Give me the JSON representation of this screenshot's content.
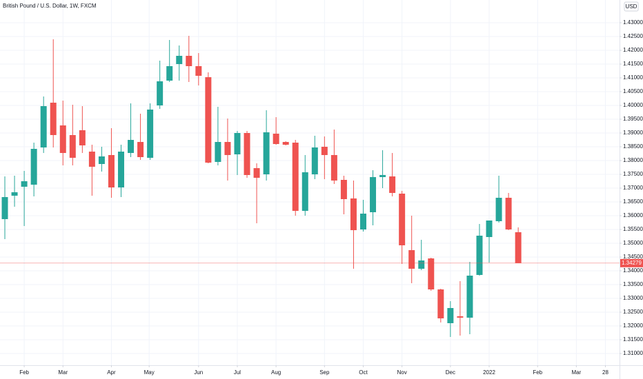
{
  "chart_data": {
    "type": "candlestick",
    "title": "British Pound / U.S. Dollar, 1W, FXCM",
    "currency": "USD",
    "up_color": "#26a69a",
    "down_color": "#ef5350",
    "grid": true,
    "xlim": [
      -0.5,
      63.46
    ],
    "ylim": [
      1.30575,
      1.43825
    ],
    "open": [
      1.35875,
      1.36725,
      1.3705,
      1.37125,
      1.38475,
      1.401,
      1.39275,
      1.38925,
      1.391,
      1.38325,
      1.37875,
      1.382,
      1.37025,
      1.38275,
      1.38675,
      1.381,
      1.4,
      1.409,
      1.415,
      1.418,
      1.41425,
      1.41025,
      1.3795,
      1.38675,
      1.38225,
      1.39,
      1.37725,
      1.375,
      1.38975,
      1.38675,
      1.3865,
      1.36175,
      1.375,
      1.385,
      1.382,
      1.373,
      1.36625,
      1.355,
      1.36125,
      1.374,
      1.37425,
      1.368,
      1.3475,
      1.34075,
      1.3445,
      1.33325,
      1.321,
      1.3235,
      1.323,
      1.3385,
      1.35225,
      1.358,
      1.3665,
      1.354
    ],
    "high": [
      1.37425,
      1.3745,
      1.37625,
      1.3865,
      1.40325,
      1.424,
      1.40175,
      1.40025,
      1.39975,
      1.38575,
      1.385,
      1.39175,
      1.38575,
      1.40075,
      1.397,
      1.40075,
      1.41625,
      1.42375,
      1.42175,
      1.42525,
      1.419,
      1.412,
      1.3995,
      1.39525,
      1.39075,
      1.39075,
      1.379,
      1.39825,
      1.39575,
      1.387,
      1.3875,
      1.382,
      1.389,
      1.38875,
      1.39125,
      1.3745,
      1.37275,
      1.36575,
      1.3765,
      1.38375,
      1.38275,
      1.369,
      1.36,
      1.35125,
      1.34475,
      1.3335,
      1.329,
      1.33625,
      1.34325,
      1.357,
      1.35825,
      1.3745,
      1.36825,
      1.35575
    ],
    "low": [
      1.3515,
      1.36325,
      1.35625,
      1.367,
      1.38275,
      1.38475,
      1.37825,
      1.37825,
      1.38275,
      1.36725,
      1.376,
      1.3665,
      1.36675,
      1.38125,
      1.38025,
      1.38025,
      1.39875,
      1.4085,
      1.409,
      1.4085,
      1.40725,
      1.379,
      1.37825,
      1.37275,
      1.37475,
      1.37375,
      1.35725,
      1.37275,
      1.38575,
      1.3855,
      1.36,
      1.36,
      1.37325,
      1.37325,
      1.3715,
      1.3605,
      1.34075,
      1.35425,
      1.3565,
      1.37,
      1.367,
      1.3425,
      1.3355,
      1.34025,
      1.33275,
      1.32125,
      1.316,
      1.3165,
      1.317,
      1.33825,
      1.343,
      1.3575,
      1.35475,
      1.34279
    ],
    "close": [
      1.36675,
      1.3685,
      1.3725,
      1.38425,
      1.39975,
      1.38925,
      1.38275,
      1.381,
      1.3855,
      1.37775,
      1.3815,
      1.37025,
      1.38325,
      1.3875,
      1.38125,
      1.3985,
      1.40875,
      1.41425,
      1.418,
      1.41425,
      1.41075,
      1.37925,
      1.38675,
      1.382,
      1.39,
      1.37475,
      1.37375,
      1.39025,
      1.386,
      1.38575,
      1.36175,
      1.37575,
      1.38475,
      1.382,
      1.37275,
      1.366,
      1.35475,
      1.36075,
      1.374,
      1.37475,
      1.36825,
      1.34925,
      1.34075,
      1.34375,
      1.33325,
      1.32275,
      1.3265,
      1.323,
      1.33825,
      1.35275,
      1.35825,
      1.3665,
      1.355,
      1.34279
    ],
    "last_price": {
      "value": 1.34279,
      "label": "1.34279"
    },
    "xticks": [
      {
        "value": 2,
        "label": "Feb"
      },
      {
        "value": 6,
        "label": "Mar"
      },
      {
        "value": 11,
        "label": "Apr"
      },
      {
        "value": 14.9,
        "label": "May"
      },
      {
        "value": 20,
        "label": "Jun"
      },
      {
        "value": 24,
        "label": "Jul"
      },
      {
        "value": 28,
        "label": "Aug"
      },
      {
        "value": 33,
        "label": "Sep"
      },
      {
        "value": 37,
        "label": "Oct"
      },
      {
        "value": 41,
        "label": "Nov"
      },
      {
        "value": 46,
        "label": "Dec"
      },
      {
        "value": 50,
        "label": "2022"
      },
      {
        "value": 55,
        "label": "Feb"
      },
      {
        "value": 59,
        "label": "Mar"
      },
      {
        "value": 62,
        "label": "28"
      }
    ],
    "yticks": [
      {
        "value": 1.31,
        "label": "1.31000"
      },
      {
        "value": 1.315,
        "label": "1.31500"
      },
      {
        "value": 1.32,
        "label": "1.32000"
      },
      {
        "value": 1.325,
        "label": "1.32500"
      },
      {
        "value": 1.33,
        "label": "1.33000"
      },
      {
        "value": 1.335,
        "label": "1.33500"
      },
      {
        "value": 1.34,
        "label": "1.34000"
      },
      {
        "value": 1.345,
        "label": "1.34500"
      },
      {
        "value": 1.35,
        "label": "1.35000"
      },
      {
        "value": 1.355,
        "label": "1.35500"
      },
      {
        "value": 1.36,
        "label": "1.36000"
      },
      {
        "value": 1.365,
        "label": "1.36500"
      },
      {
        "value": 1.37,
        "label": "1.37000"
      },
      {
        "value": 1.375,
        "label": "1.37500"
      },
      {
        "value": 1.38,
        "label": "1.38000"
      },
      {
        "value": 1.385,
        "label": "1.38500"
      },
      {
        "value": 1.39,
        "label": "1.39000"
      },
      {
        "value": 1.395,
        "label": "1.39500"
      },
      {
        "value": 1.4,
        "label": "1.40000"
      },
      {
        "value": 1.405,
        "label": "1.40500"
      },
      {
        "value": 1.41,
        "label": "1.41000"
      },
      {
        "value": 1.415,
        "label": "1.41500"
      },
      {
        "value": 1.42,
        "label": "1.42000"
      },
      {
        "value": 1.425,
        "label": "1.42500"
      },
      {
        "value": 1.43,
        "label": "1.43000"
      }
    ]
  }
}
